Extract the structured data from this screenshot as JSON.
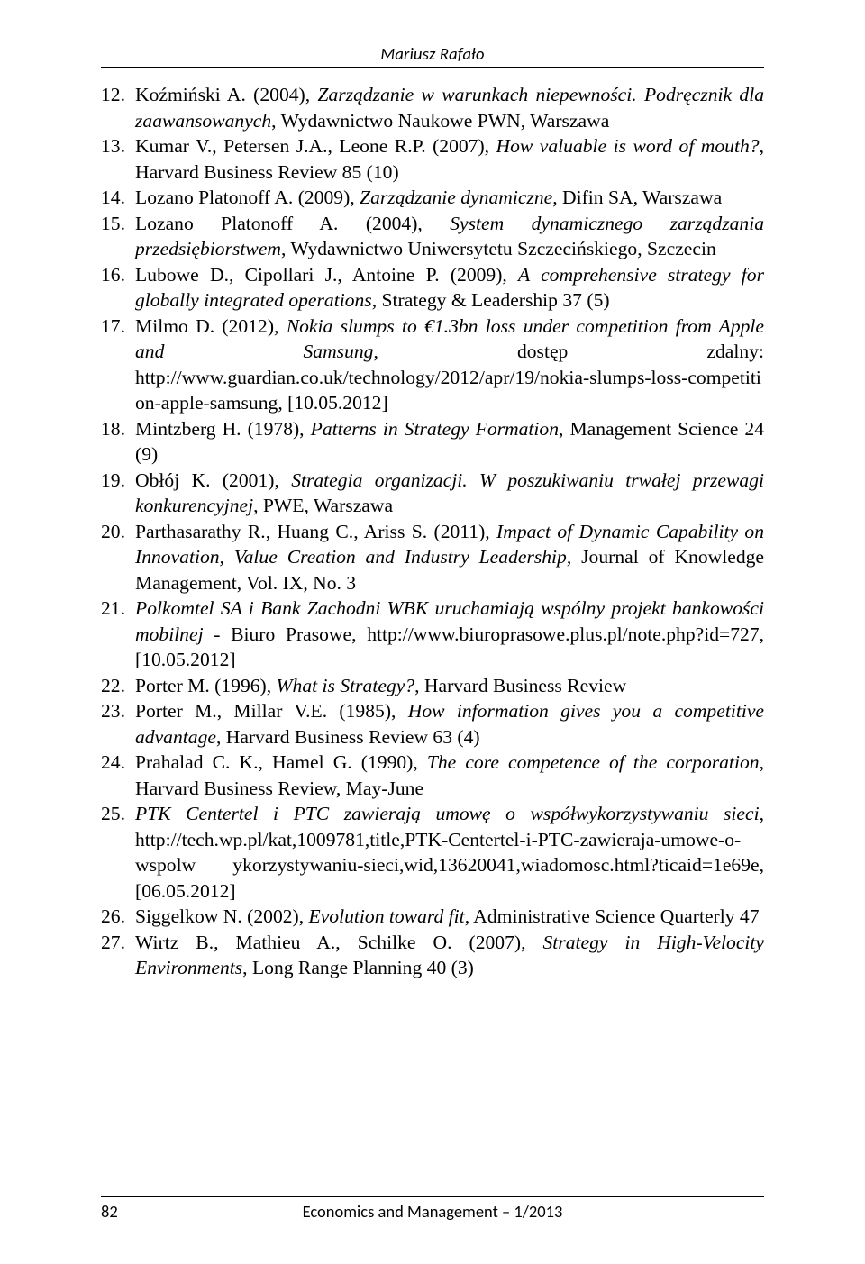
{
  "header": {
    "author": "Mariusz Rafało"
  },
  "refs": [
    {
      "n": "12.",
      "html": "Koźmiński A. (2004), <span class=\"i\">Zarządzanie w warunkach niepewności. Podręcznik dla zaawansowanych</span>, Wydawnictwo Naukowe PWN, Warszawa"
    },
    {
      "n": "13.",
      "html": "Kumar V., Petersen J.A., Leone R.P. (2007), <span class=\"i\">How valuable is word of mouth?</span>, Harvard Business Review 85 (10)"
    },
    {
      "n": "14.",
      "html": "Lozano Platonoff A. (2009), <span class=\"i\">Zarządzanie dynamiczne</span>, Difin SA, Warszawa"
    },
    {
      "n": "15.",
      "html": "Lozano Platonoff A. (2004), <span class=\"i\">System dynamicznego zarządzania przedsiębiorstwem</span>, Wydawnictwo Uniwersytetu Szczecińskiego, Szczecin"
    },
    {
      "n": "16.",
      "html": "Lubowe D., Cipollari J., Antoine P. (2009), <span class=\"i\">A comprehensive strategy for globally integrated operations</span>, Strategy &amp; Leadership 37 (5)"
    },
    {
      "n": "17.",
      "html": "Milmo D. (2012), <span class=\"i\">Nokia slumps to €1.3bn loss under competition from Apple and Samsung</span>, dostęp zdalny: http://www.guardian.co.uk/technology/2012/apr/19/nokia-slumps-loss-competiti on-apple-samsung, [10.05.2012]"
    },
    {
      "n": "18.",
      "html": "Mintzberg H. (1978), <span class=\"i\">Patterns in Strategy Formation</span>, Management Science 24 (9)"
    },
    {
      "n": "19.",
      "html": "Obłój K. (2001), <span class=\"i\">Strategia organizacji. W poszukiwaniu trwałej przewagi konkurencyjnej</span>, PWE, Warszawa"
    },
    {
      "n": "20.",
      "html": "Parthasarathy R., Huang C., Ariss S. (2011), <span class=\"i\">Impact of Dynamic Capability on Innovation, Value Creation and Industry Leadership,</span> Journal of Knowledge Management, Vol. IX, No. 3"
    },
    {
      "n": "21.",
      "html": "<span class=\"i\">Polkomtel SA i Bank Zachodni WBK uruchamiają wspólny projekt bankowości mobilnej</span> - Biuro Prasowe, http://www.biuroprasowe.plus.pl/note.php?id=727, [10.05.2012]"
    },
    {
      "n": "22.",
      "html": "Porter M. (1996), <span class=\"i\">What is Strategy?</span>, Harvard Business Review"
    },
    {
      "n": "23.",
      "html": "Porter M., Millar V.E. (1985), <span class=\"i\">How information gives you a competitive advantage</span>, Harvard Business Review 63 (4)"
    },
    {
      "n": "24.",
      "html": "Prahalad C. K., Hamel G. (1990), <span class=\"i\">The core competence of the corporation</span>, Harvard Business Review, May-June"
    },
    {
      "n": "25.",
      "html": "<span class=\"i\">PTK Centertel i PTC zawierają umowę o współwykorzystywaniu sieci</span>, http://tech.wp.pl/kat,1009781,title,PTK-Centertel-i-PTC-zawieraja-umowe-o-wspolw ykorzystywaniu-sieci,wid,13620041,wiadomosc.html?ticaid=1e69e, [06.05.2012]"
    },
    {
      "n": "26.",
      "html": "Siggelkow N. (2002), <span class=\"i\">Evolution toward fit</span>, Administrative Science Quarterly 47"
    },
    {
      "n": "27.",
      "html": "Wirtz B., Mathieu A., Schilke O. (2007), <span class=\"i\">Strategy in High-Velocity Environments</span>, Long Range Planning 40 (3)"
    }
  ],
  "footer": {
    "page_number": "82",
    "journal": "Economics and Management – 1/2013"
  }
}
